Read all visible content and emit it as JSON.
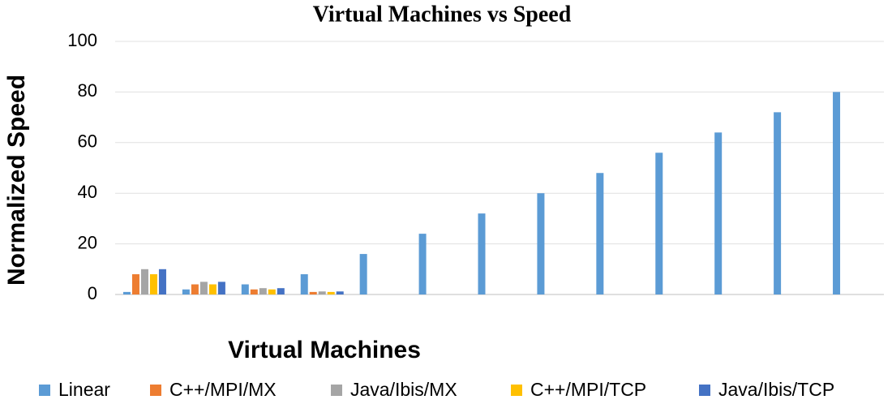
{
  "chart_data": {
    "type": "bar",
    "title": "Virtual Machines vs Speed",
    "x_label": "Virtual Machines",
    "y_label": "Normalized Speed",
    "categories": [
      null,
      null,
      null,
      null,
      null,
      null,
      null,
      null,
      null,
      null,
      null,
      null,
      null
    ],
    "series": [
      {
        "name": "Linear",
        "color": "#5b9bd5",
        "values": [
          1,
          2,
          4,
          8,
          16,
          24,
          32,
          40,
          48,
          56,
          64,
          72,
          80
        ]
      },
      {
        "name": "C++/MPI/MX",
        "color": "#ed7d31",
        "values": [
          8,
          4,
          2,
          1,
          null,
          null,
          null,
          null,
          null,
          null,
          null,
          null,
          null
        ]
      },
      {
        "name": "Java/Ibis/MX",
        "color": "#a5a5a5",
        "values": [
          10,
          5,
          2.5,
          1.2,
          null,
          null,
          null,
          null,
          null,
          null,
          null,
          null,
          null
        ]
      },
      {
        "name": "C++/MPI/TCP",
        "color": "#ffc000",
        "values": [
          8,
          4,
          2,
          1,
          null,
          null,
          null,
          null,
          null,
          null,
          null,
          null,
          null
        ]
      },
      {
        "name": "Java/Ibis/TCP",
        "color": "#4472c4",
        "values": [
          10,
          5,
          2.5,
          1.2,
          null,
          null,
          null,
          null,
          null,
          null,
          null,
          null,
          null
        ]
      }
    ],
    "ylim": [
      0,
      100
    ],
    "yticks": [
      0,
      20,
      40,
      60,
      80,
      100
    ],
    "grid": true,
    "legend": "bottom"
  }
}
